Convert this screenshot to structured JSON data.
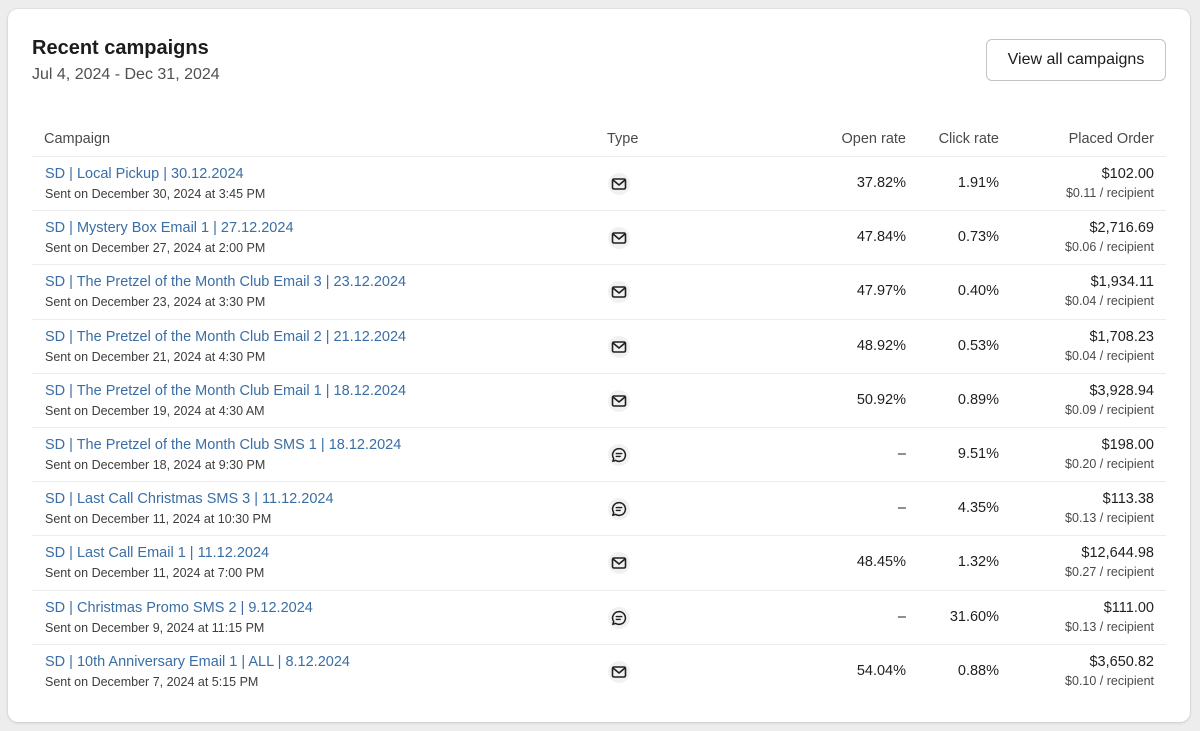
{
  "header": {
    "title": "Recent campaigns",
    "date_range": "Jul 4, 2024 - Dec 31, 2024",
    "view_all_label": "View all campaigns"
  },
  "table": {
    "columns": {
      "campaign": "Campaign",
      "type": "Type",
      "open_rate": "Open rate",
      "click_rate": "Click rate",
      "placed_order": "Placed Order"
    },
    "rows": [
      {
        "name": "SD | Local Pickup | 30.12.2024",
        "sent": "Sent on December 30, 2024 at 3:45 PM",
        "type": "email-icon",
        "open_rate": "37.82%",
        "click_rate": "1.91%",
        "placed_order": "$102.00",
        "per_recipient": "$0.11 / recipient"
      },
      {
        "name": "SD | Mystery Box Email 1 | 27.12.2024",
        "sent": "Sent on December 27, 2024 at 2:00 PM",
        "type": "email-icon",
        "open_rate": "47.84%",
        "click_rate": "0.73%",
        "placed_order": "$2,716.69",
        "per_recipient": "$0.06 / recipient"
      },
      {
        "name": "SD | The Pretzel of the Month Club Email 3 | 23.12.2024",
        "sent": "Sent on December 23, 2024 at 3:30 PM",
        "type": "email-icon",
        "open_rate": "47.97%",
        "click_rate": "0.40%",
        "placed_order": "$1,934.11",
        "per_recipient": "$0.04 / recipient"
      },
      {
        "name": "SD | The Pretzel of the Month Club Email 2 | 21.12.2024",
        "sent": "Sent on December 21, 2024 at 4:30 PM",
        "type": "email-icon",
        "open_rate": "48.92%",
        "click_rate": "0.53%",
        "placed_order": "$1,708.23",
        "per_recipient": "$0.04 / recipient"
      },
      {
        "name": "SD | The Pretzel of the Month Club Email 1 | 18.12.2024",
        "sent": "Sent on December 19, 2024 at 4:30 AM",
        "type": "email-icon",
        "open_rate": "50.92%",
        "click_rate": "0.89%",
        "placed_order": "$3,928.94",
        "per_recipient": "$0.09 / recipient"
      },
      {
        "name": "SD | The Pretzel of the Month Club SMS 1 | 18.12.2024",
        "sent": "Sent on December 18, 2024 at 9:30 PM",
        "type": "sms-icon",
        "open_rate": "–",
        "click_rate": "9.51%",
        "placed_order": "$198.00",
        "per_recipient": "$0.20 / recipient"
      },
      {
        "name": "SD | Last Call Christmas SMS 3 | 11.12.2024",
        "sent": "Sent on December 11, 2024 at 10:30 PM",
        "type": "sms-icon",
        "open_rate": "–",
        "click_rate": "4.35%",
        "placed_order": "$113.38",
        "per_recipient": "$0.13 / recipient"
      },
      {
        "name": "SD | Last Call Email 1 | 11.12.2024",
        "sent": "Sent on December 11, 2024 at 7:00 PM",
        "type": "email-icon",
        "open_rate": "48.45%",
        "click_rate": "1.32%",
        "placed_order": "$12,644.98",
        "per_recipient": "$0.27 / recipient"
      },
      {
        "name": "SD | Christmas Promo SMS 2 | 9.12.2024",
        "sent": "Sent on December 9, 2024 at 11:15 PM",
        "type": "sms-icon",
        "open_rate": "–",
        "click_rate": "31.60%",
        "placed_order": "$111.00",
        "per_recipient": "$0.13 / recipient"
      },
      {
        "name": "SD | 10th Anniversary Email 1 | ALL | 8.12.2024",
        "sent": "Sent on December 7, 2024 at 5:15 PM",
        "type": "email-icon",
        "open_rate": "54.04%",
        "click_rate": "0.88%",
        "placed_order": "$3,650.82",
        "per_recipient": "$0.10 / recipient"
      }
    ]
  },
  "colors": {
    "link": "#3a6ea5",
    "card_background": "#ffffff",
    "page_background": "#ededee"
  }
}
